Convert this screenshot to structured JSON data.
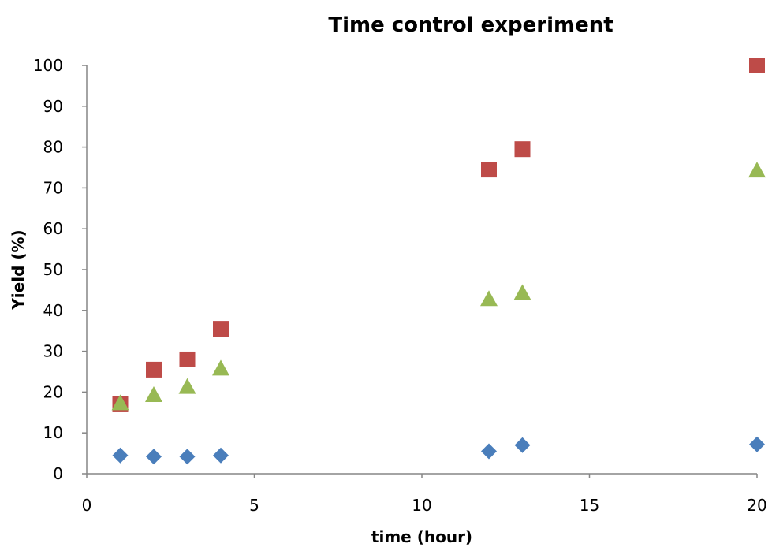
{
  "chart_data": {
    "type": "scatter",
    "title": "Time control experiment",
    "xlabel": "time (hour)",
    "ylabel": "Yield (%)",
    "xlim": [
      0,
      20
    ],
    "ylim": [
      0,
      100
    ],
    "x_ticks": [
      0,
      5,
      10,
      15,
      20
    ],
    "y_ticks": [
      0,
      10,
      20,
      30,
      40,
      50,
      60,
      70,
      80,
      90,
      100
    ],
    "grid": false,
    "legend": "none",
    "series": [
      {
        "marker": "diamond",
        "color": "#4a7ebb",
        "x": [
          1,
          2,
          3,
          4,
          12,
          13,
          20
        ],
        "y": [
          4.5,
          4.2,
          4.2,
          4.5,
          5.5,
          7,
          7.2
        ]
      },
      {
        "marker": "square",
        "color": "#be4b48",
        "x": [
          1,
          2,
          3,
          4,
          12,
          13,
          20
        ],
        "y": [
          17,
          25.5,
          28,
          35.5,
          74.5,
          79.5,
          100
        ]
      },
      {
        "marker": "triangle",
        "color": "#98b954",
        "x": [
          1,
          2,
          3,
          4,
          12,
          13,
          20
        ],
        "y": [
          17.5,
          19.5,
          21.5,
          26,
          43,
          44.5,
          74.5
        ]
      }
    ]
  }
}
